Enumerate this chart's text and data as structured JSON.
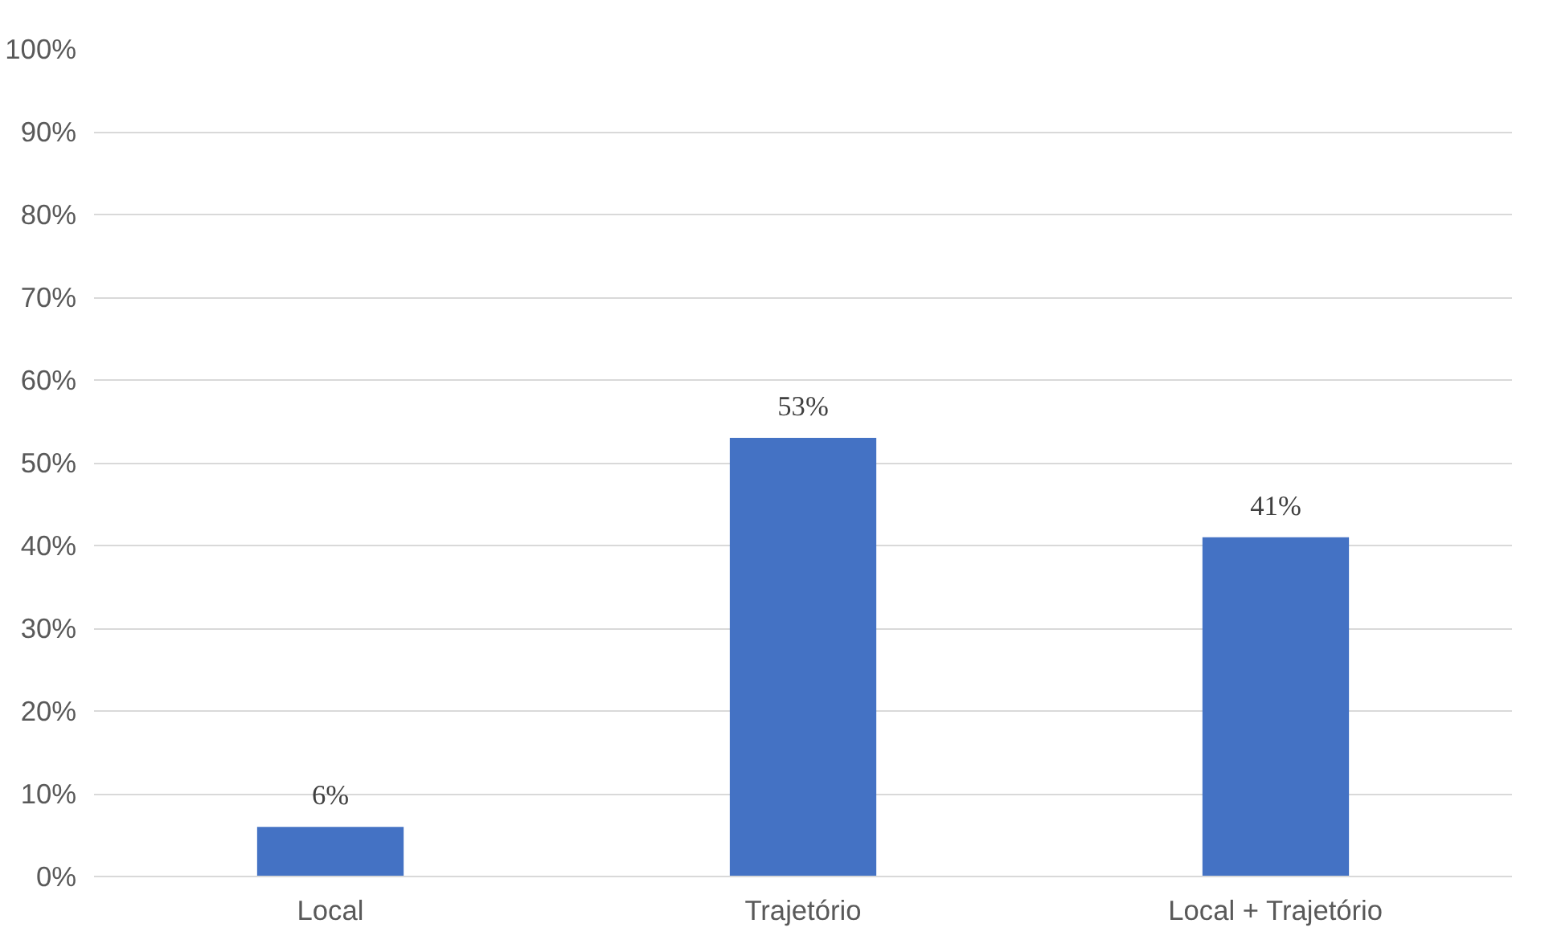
{
  "chart_data": {
    "type": "bar",
    "categories": [
      "Local",
      "Trajetório",
      "Local + Trajetório"
    ],
    "values": [
      6,
      53,
      41
    ],
    "value_labels": [
      "6%",
      "53%",
      "41%"
    ],
    "color": "#4472c4",
    "ylim": [
      0,
      100
    ],
    "yticks": [
      {
        "value": 0,
        "label": "0%"
      },
      {
        "value": 10,
        "label": "10%"
      },
      {
        "value": 20,
        "label": "20%"
      },
      {
        "value": 30,
        "label": "30%"
      },
      {
        "value": 40,
        "label": "40%"
      },
      {
        "value": 50,
        "label": "50%"
      },
      {
        "value": 60,
        "label": "60%"
      },
      {
        "value": 70,
        "label": "70%"
      },
      {
        "value": 80,
        "label": "80%"
      },
      {
        "value": 90,
        "label": "90%"
      },
      {
        "value": 100,
        "label": "100%"
      }
    ],
    "grid": "y"
  }
}
